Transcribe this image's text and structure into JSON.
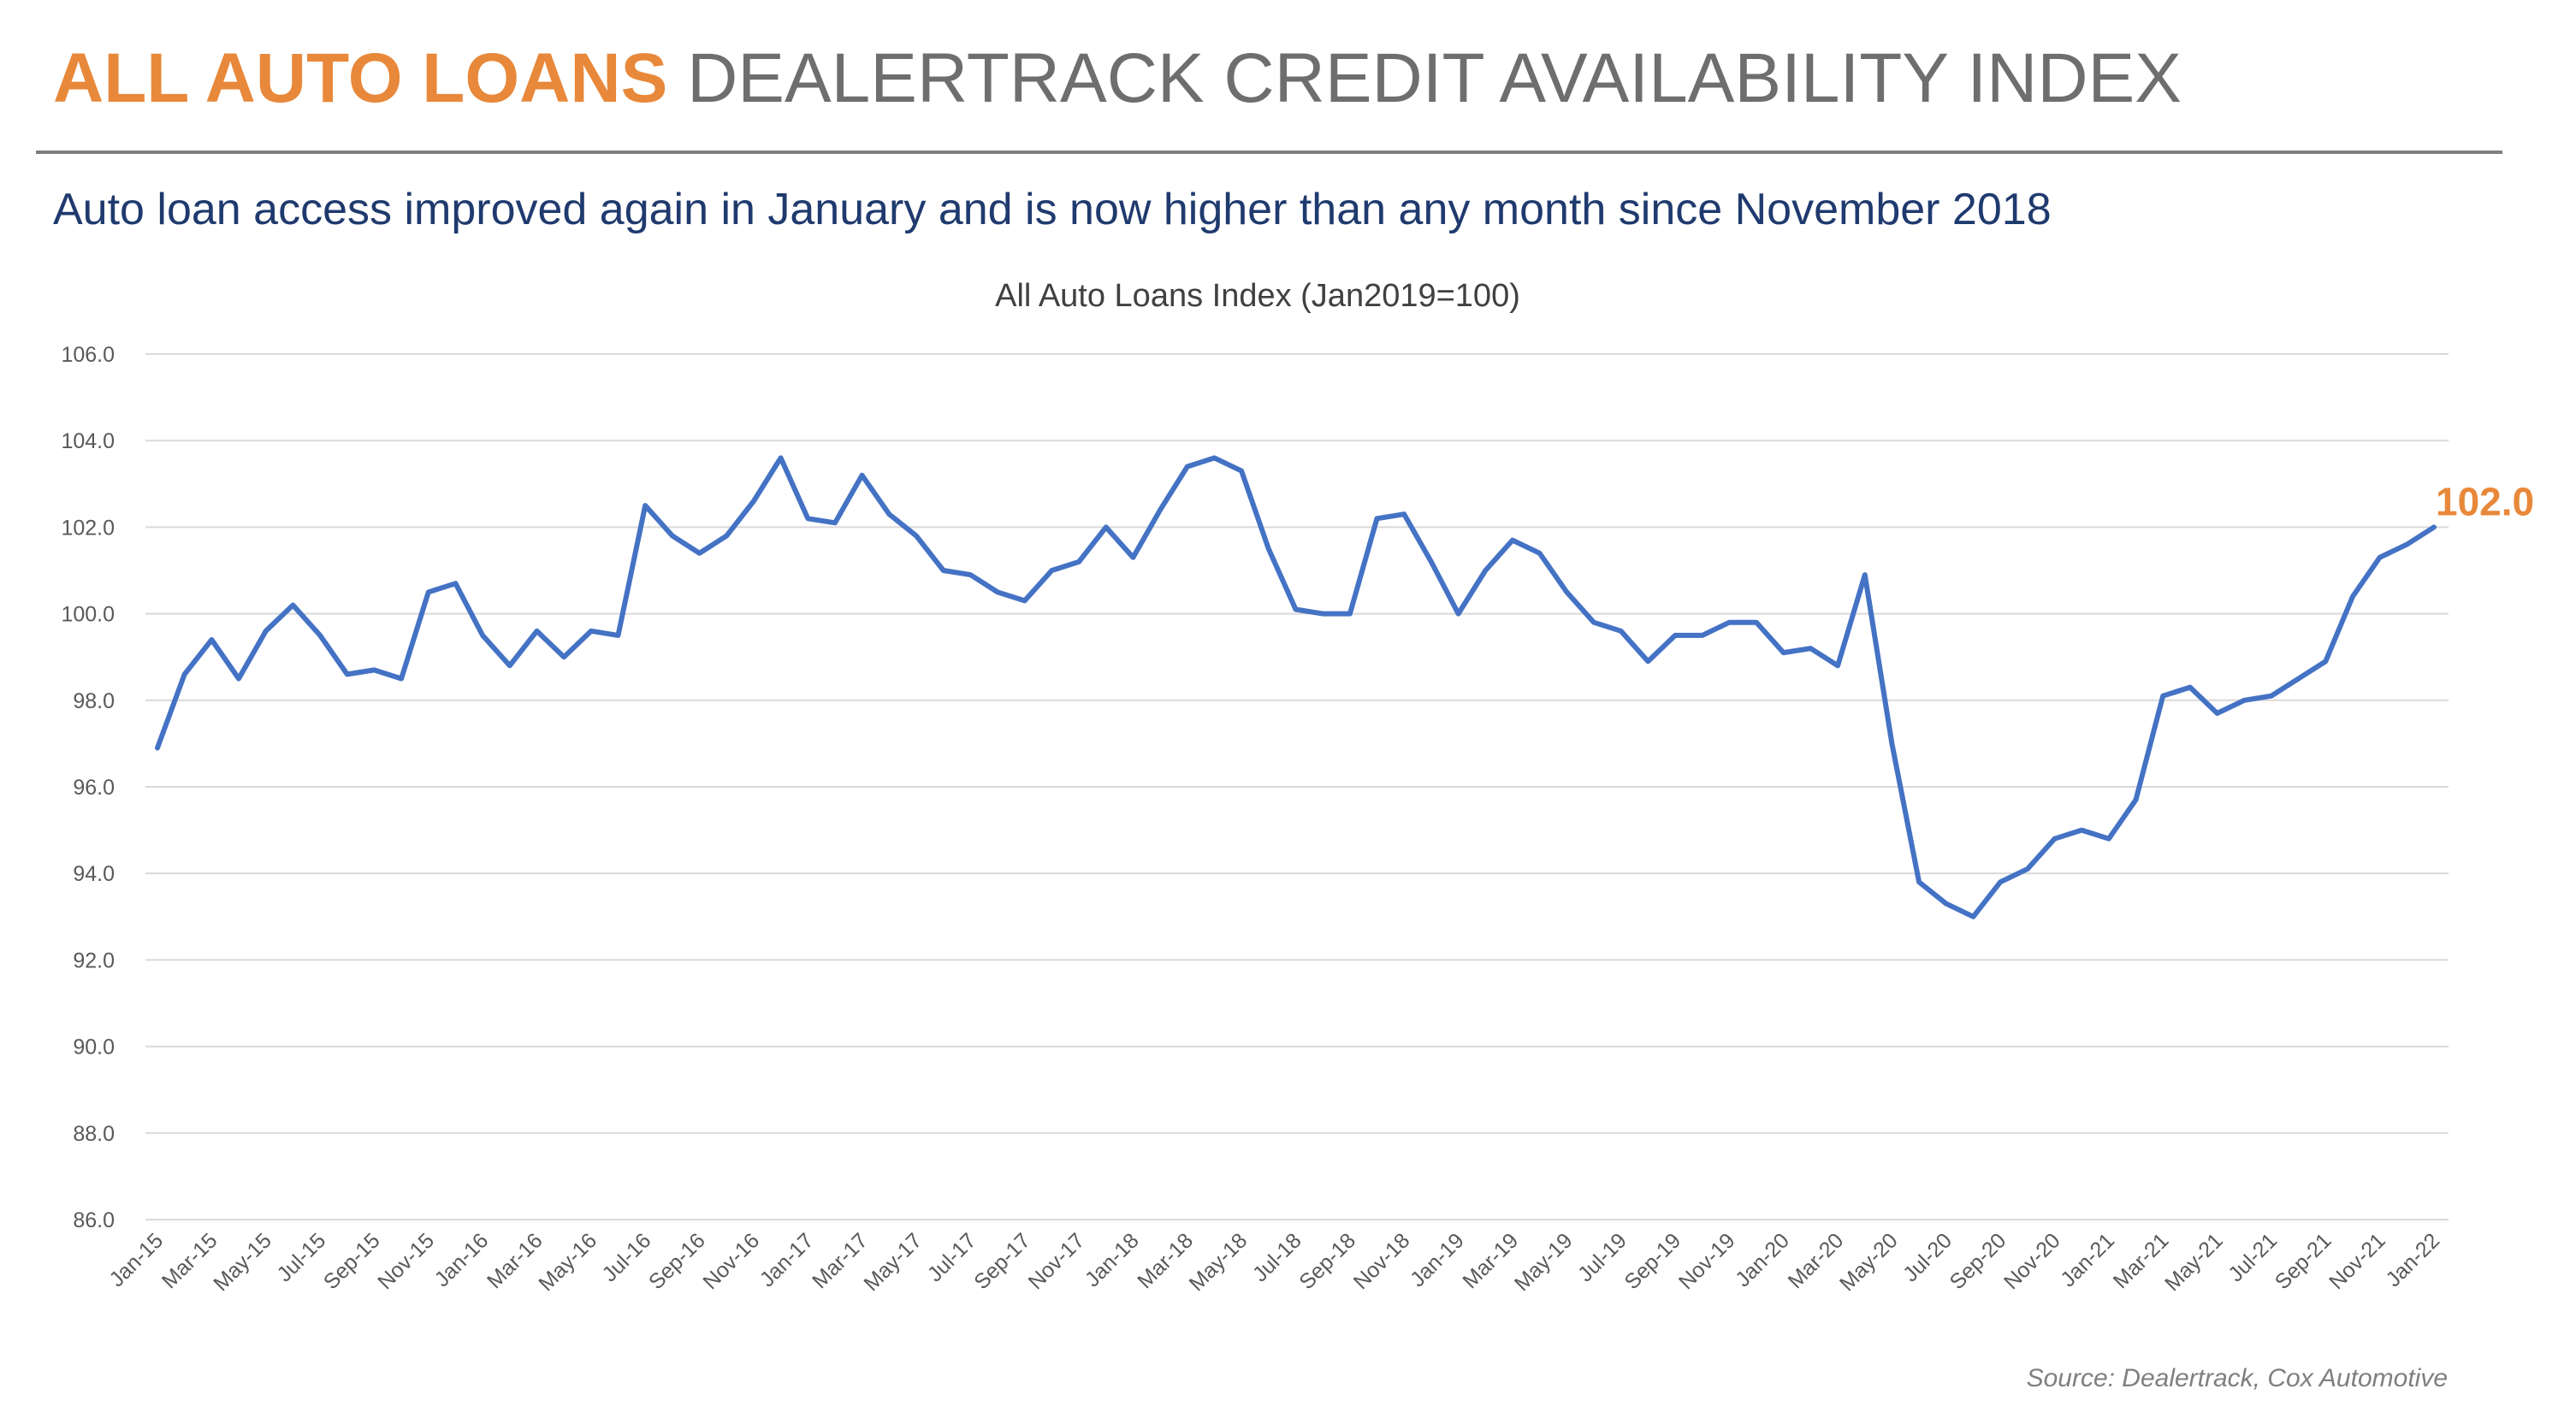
{
  "header": {
    "title_accent": "ALL AUTO LOANS",
    "title_rest": "DEALERTRACK CREDIT AVAILABILITY INDEX",
    "subtitle": "Auto loan access improved again in January and is now higher than any month since November 2018"
  },
  "footer": {
    "source": "Source: Dealertrack, Cox Automotive"
  },
  "colors": {
    "accent": "#E8883A",
    "title_gray": "#6E6E6E",
    "subtitle_blue": "#1F3A6E",
    "series_line": "#4472C4",
    "gridline": "#D9D9D9"
  },
  "chart_data": {
    "type": "line",
    "title": "All Auto Loans Index (Jan2019=100)",
    "xlabel": "",
    "ylabel": "",
    "ylim": [
      86.0,
      106.0
    ],
    "yticks": [
      "86.0",
      "88.0",
      "90.0",
      "92.0",
      "94.0",
      "96.0",
      "98.0",
      "100.0",
      "102.0",
      "104.0",
      "106.0"
    ],
    "grid": true,
    "legend": "none",
    "last_value_label": "102.0",
    "categories": [
      "Jan-15",
      "Feb-15",
      "Mar-15",
      "Apr-15",
      "May-15",
      "Jun-15",
      "Jul-15",
      "Aug-15",
      "Sep-15",
      "Oct-15",
      "Nov-15",
      "Dec-15",
      "Jan-16",
      "Feb-16",
      "Mar-16",
      "Apr-16",
      "May-16",
      "Jun-16",
      "Jul-16",
      "Aug-16",
      "Sep-16",
      "Oct-16",
      "Nov-16",
      "Dec-16",
      "Jan-17",
      "Feb-17",
      "Mar-17",
      "Apr-17",
      "May-17",
      "Jun-17",
      "Jul-17",
      "Aug-17",
      "Sep-17",
      "Oct-17",
      "Nov-17",
      "Dec-17",
      "Jan-18",
      "Feb-18",
      "Mar-18",
      "Apr-18",
      "May-18",
      "Jun-18",
      "Jul-18",
      "Aug-18",
      "Sep-18",
      "Oct-18",
      "Nov-18",
      "Dec-18",
      "Jan-19",
      "Feb-19",
      "Mar-19",
      "Apr-19",
      "May-19",
      "Jun-19",
      "Jul-19",
      "Aug-19",
      "Sep-19",
      "Oct-19",
      "Nov-19",
      "Dec-19",
      "Jan-20",
      "Feb-20",
      "Mar-20",
      "Apr-20",
      "May-20",
      "Jun-20",
      "Jul-20",
      "Aug-20",
      "Sep-20",
      "Oct-20",
      "Nov-20",
      "Dec-20",
      "Jan-21",
      "Feb-21",
      "Mar-21",
      "Apr-21",
      "May-21",
      "Jun-21",
      "Jul-21",
      "Aug-21",
      "Sep-21",
      "Oct-21",
      "Nov-21",
      "Dec-21",
      "Jan-22"
    ],
    "series": [
      {
        "values": [
          96.9,
          98.6,
          99.4,
          98.5,
          99.6,
          100.2,
          99.5,
          98.6,
          98.7,
          98.5,
          100.5,
          100.7,
          99.5,
          98.8,
          99.6,
          99.0,
          99.6,
          99.5,
          102.5,
          101.8,
          101.4,
          101.8,
          102.6,
          103.6,
          102.2,
          102.1,
          103.2,
          102.3,
          101.8,
          101.0,
          100.9,
          100.5,
          100.3,
          101.0,
          101.2,
          102.0,
          101.3,
          102.4,
          103.4,
          103.6,
          103.3,
          101.5,
          100.1,
          100.0,
          100.0,
          102.2,
          102.3,
          101.2,
          100.0,
          101.0,
          101.7,
          101.4,
          100.5,
          99.8,
          99.6,
          98.9,
          99.5,
          99.5,
          99.8,
          99.8,
          99.1,
          99.2,
          98.8,
          100.9,
          97.0,
          93.8,
          93.3,
          93.0,
          93.8,
          94.1,
          94.8,
          95.0,
          94.8,
          95.7,
          98.1,
          98.3,
          97.7,
          98.0,
          98.1,
          98.5,
          98.9,
          100.4,
          101.3,
          101.6,
          102.0
        ]
      }
    ]
  }
}
